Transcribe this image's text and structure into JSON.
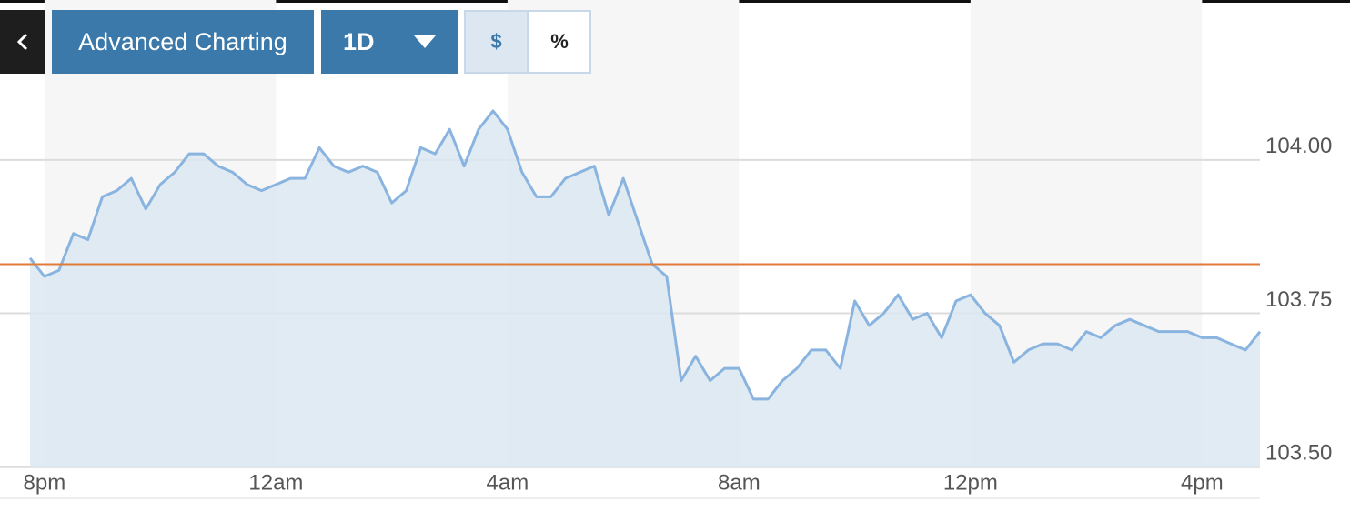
{
  "toolbar": {
    "title": "Advanced Charting",
    "period": "1D",
    "units": [
      "$",
      "%"
    ]
  },
  "chart_data": {
    "type": "line",
    "categories": [
      null,
      "8pm",
      null,
      null,
      null,
      null,
      null,
      null,
      null,
      null,
      null,
      null,
      null,
      null,
      null,
      null,
      null,
      "12am",
      null,
      null,
      null,
      null,
      null,
      null,
      null,
      null,
      null,
      null,
      null,
      null,
      null,
      null,
      null,
      "4am",
      null,
      null,
      null,
      null,
      null,
      null,
      null,
      null,
      null,
      null,
      null,
      null,
      null,
      null,
      null,
      "8am",
      null,
      null,
      null,
      null,
      null,
      null,
      null,
      null,
      null,
      null,
      null,
      null,
      null,
      null,
      null,
      "12pm",
      null,
      null,
      null,
      null,
      null,
      null,
      null,
      null,
      null,
      null,
      null,
      null,
      null,
      null,
      null,
      "4pm",
      null,
      null,
      null,
      null
    ],
    "values": [
      103.84,
      103.81,
      103.82,
      103.88,
      103.87,
      103.94,
      103.95,
      103.97,
      103.92,
      103.96,
      103.98,
      104.01,
      104.01,
      103.99,
      103.98,
      103.96,
      103.95,
      103.96,
      103.97,
      103.97,
      104.02,
      103.99,
      103.98,
      103.99,
      103.98,
      103.93,
      103.95,
      104.02,
      104.01,
      104.05,
      103.99,
      104.05,
      104.08,
      104.05,
      103.98,
      103.94,
      103.94,
      103.97,
      103.98,
      103.99,
      103.91,
      103.97,
      103.9,
      103.83,
      103.81,
      103.64,
      103.68,
      103.64,
      103.66,
      103.66,
      103.61,
      103.61,
      103.64,
      103.66,
      103.69,
      103.69,
      103.66,
      103.77,
      103.73,
      103.75,
      103.78,
      103.74,
      103.75,
      103.71,
      103.77,
      103.78,
      103.75,
      103.73,
      103.67,
      103.69,
      103.7,
      103.7,
      103.69,
      103.72,
      103.71,
      103.73,
      103.74,
      103.73,
      103.72,
      103.72,
      103.72,
      103.71,
      103.71,
      103.7,
      103.69,
      103.72
    ],
    "color": "#8ab4e0",
    "area_color": "#dce7f1",
    "reference_line": 103.83,
    "reference_color": "#e07b39",
    "ylim": [
      103.5,
      104.12
    ],
    "yticks": [
      {
        "value": 103.5,
        "label": "103.50"
      },
      {
        "value": 103.75,
        "label": "103.75"
      },
      {
        "value": 104.0,
        "label": "104.00"
      }
    ],
    "grid": true
  }
}
